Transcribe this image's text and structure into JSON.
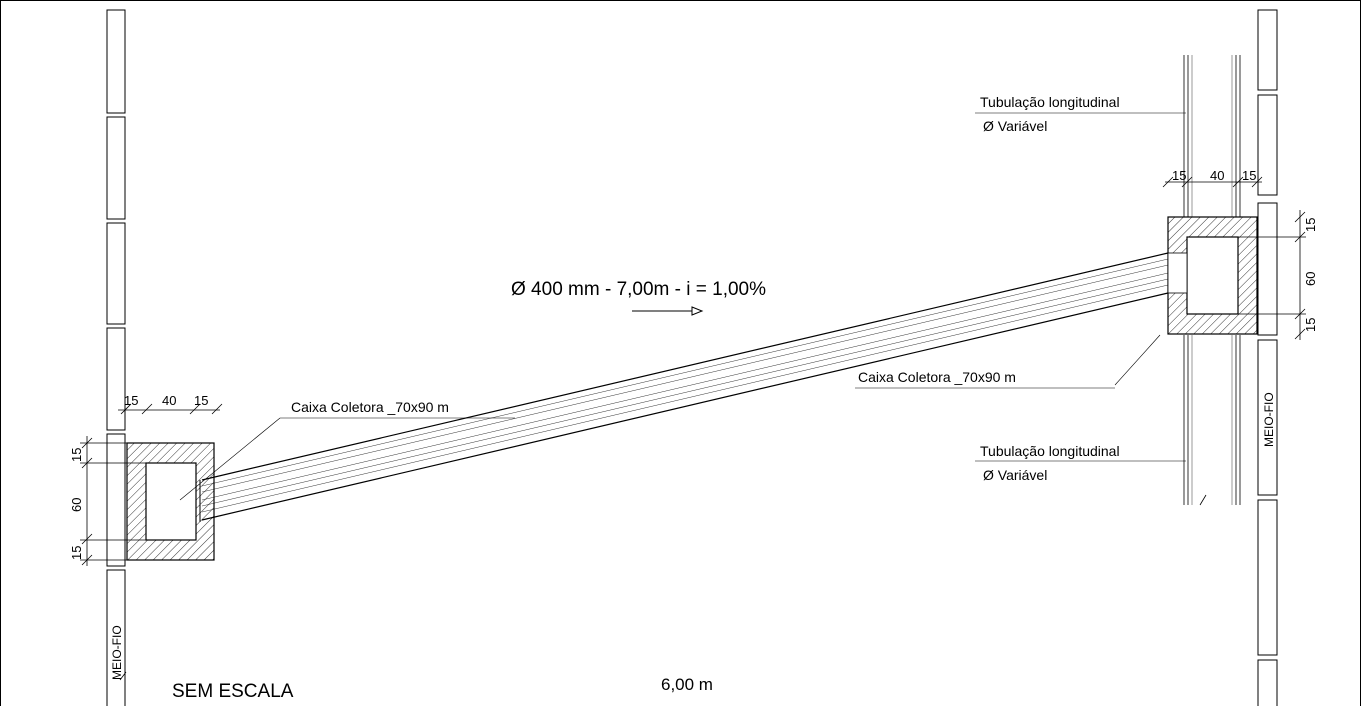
{
  "pipe_spec": "Ø 400 mm - 7,00m - i = 1,00%",
  "left_box": {
    "label": "Caixa Coletora _70x90 m",
    "dims_horizontal": [
      "15",
      "40",
      "15"
    ],
    "dims_vertical": [
      "15",
      "60",
      "15"
    ]
  },
  "right_box": {
    "label": "Caixa Coletora _70x90 m",
    "dims_horizontal": [
      "15",
      "40",
      "15"
    ],
    "dims_vertical": [
      "15",
      "60",
      "15"
    ]
  },
  "pipe_top": {
    "line1": "Tubulação longitudinal",
    "line2": "Ø Variável"
  },
  "pipe_bottom": {
    "line1": "Tubulação longitudinal",
    "line2": "Ø Variável"
  },
  "curb_label": "MEIO-FIO",
  "scale_note": "SEM ESCALA",
  "width_dim": "6,00 m"
}
